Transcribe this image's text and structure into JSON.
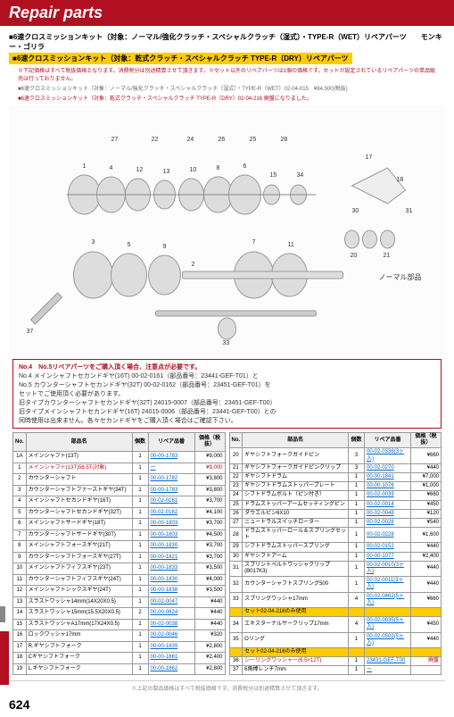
{
  "header": "Repair parts",
  "section_titles": [
    "■6速クロスミッションキット（対象：ノーマル/強化クラッチ・スペシャルクラッチ（湿式）・TYPE-R（WET）リペアパーツ　　モンキー・ゴリラ",
    "■6速クロスミッションキット（対象：乾式クラッチ・スペシャルクラッチ TYPE-R（DRY）リペアパーツ"
  ],
  "red_notice": "※下記価格はすべて税抜価格となります。消費税分は別途精算させて頂きます。※セット以外のリペアパーツは1個の価格です。セットが設定されているリペアパーツの単品販売は行っておりません。",
  "kit_lines": [
    "■6速クロスミッションキット（対象：ノーマル/強化クラッチ・スペシャルクラッチ（湿式）・TYPE-R（WET）02-04-015　¥84,500(税抜)",
    "■6速クロスミッションキット（対象：乾式クラッチ・スペシャルクラッチ TYPE-R（DRY）02-04-216 廃盤になりました。"
  ],
  "notice_box": {
    "header": "No.4　No.5リペアパーツをご購入頂く場合、注意点が必要です。",
    "lines": [
      "No.4 メインシャフトセカンドギヤ(16T) 00-02-0161（部品番号：23441-GEF-T01）と",
      "No.5 カウンターシャフトセカンドギヤ(32T) 00-02-0162（部品番号：23451-GEF-T01）を",
      "セットでご使用頂く必要があります。",
      "旧タイプカウンターシャフトセカンドギヤ(32T) 24015-0007（部品番号：23451-GEF-T00）",
      "旧タイプメインシャフトセカンドギヤ(16T) 24015-0006（部品番号：23441-GEF-T00）との",
      "同時使用は出来ません。各々セカンドギヤをご購入頂く場合はご確認下さい。"
    ]
  },
  "table_headers": [
    "No.",
    "部品名",
    "個数",
    "リペア品番",
    "価格（税抜）"
  ],
  "left_rows": [
    {
      "no": "1A",
      "nm": "メインシャフト(13T)",
      "qty": "1",
      "pn": "00-00-1783",
      "pr": "¥9,000"
    },
    {
      "no": "1",
      "nm": "メインシャフト(13T)58.5T(対象)",
      "qty": "1",
      "pn": "ー",
      "pr": "¥9,000",
      "red": true
    },
    {
      "no": "2",
      "nm": "カウンターシャフト",
      "qty": "1",
      "pn": "00-00-1782",
      "pr": "¥3,800"
    },
    {
      "no": "3",
      "nm": "カウンターシャフトファーストギヤ(34T)",
      "qty": "1",
      "pn": "00-00-1783",
      "pr": "¥3,800"
    },
    {
      "no": "4",
      "nm": "メインシャフトセカンドギヤ(16T)",
      "qty": "1",
      "pn": "00-02-0161",
      "pr": "¥3,700"
    },
    {
      "no": "5",
      "nm": "カウンターシャフトセカンドギヤ(32T)",
      "qty": "1",
      "pn": "00-02-0162",
      "pr": "¥4,100"
    },
    {
      "no": "6",
      "nm": "メインシャフトサードギヤ(18T)",
      "qty": "1",
      "pn": "00-00-1803",
      "pr": "¥3,700"
    },
    {
      "no": "7",
      "nm": "カウンターシャフトサードギヤ(30T)",
      "qty": "1",
      "pn": "00-00-1803",
      "pr": "¥4,500"
    },
    {
      "no": "8",
      "nm": "メインシャフトフォースギヤ(21T)",
      "qty": "1",
      "pn": "00-00-1830",
      "pr": "¥3,700"
    },
    {
      "no": "9",
      "nm": "カウンターシャフトフォースギヤ(27T)",
      "qty": "1",
      "pn": "00-00-1821",
      "pr": "¥3,700"
    },
    {
      "no": "10",
      "nm": "メインシャフトフィフスギヤ(23T)",
      "qty": "1",
      "pn": "00-00-1833",
      "pr": "¥3,500"
    },
    {
      "no": "11",
      "nm": "カウンターシャフトフィフスギヤ(24T)",
      "qty": "1",
      "pn": "00-00-1830",
      "pr": "¥4,000"
    },
    {
      "no": "12",
      "nm": "メインシャフトシックスギヤ(24T)",
      "qty": "1",
      "pn": "00-00-1838",
      "pr": "¥3,500"
    },
    {
      "no": "13",
      "nm": "スラストワッシャ14mm(14X20X0.5)",
      "qty": "1",
      "pn": "00-02-0047",
      "pr": "¥440"
    },
    {
      "no": "14",
      "nm": "スラストワッシャ15mm(15.5X20X0.5)",
      "qty": "2",
      "pn": "00-00-0624",
      "pr": "¥440"
    },
    {
      "no": "15",
      "nm": "スラストワッシャA17mm(17X24X0.5)",
      "qty": "1",
      "pn": "00-02-0038",
      "pr": "¥440"
    },
    {
      "no": "16",
      "nm": "ロックワッシャ17mm",
      "qty": "1",
      "pn": "00-02-0046",
      "pr": "¥320"
    },
    {
      "no": "17",
      "nm": "R.ギヤシフトフォーク",
      "qty": "1",
      "pn": "00-00-1839",
      "pr": "¥2,800"
    },
    {
      "no": "18",
      "nm": "Cギヤシフトフォーク",
      "qty": "1",
      "pn": "00-00-1861",
      "pr": "¥2,400"
    },
    {
      "no": "19",
      "nm": "L.ギヤシフトフォーク",
      "qty": "1",
      "pn": "00-00-1862",
      "pr": "¥2,800"
    }
  ],
  "right_rows": [
    {
      "no": "20",
      "nm": "ギヤシフトフォークガイドピン",
      "qty": "3",
      "pn": "00-02-0336(3ヶ入)",
      "pr": "¥660"
    },
    {
      "no": "21",
      "nm": "ギヤシフトフォークガイドピンクリップ",
      "qty": "3",
      "pn": "00-02-0270",
      "pr": "¥440"
    },
    {
      "no": "22",
      "nm": "ギヤシフトドラム",
      "qty": "1",
      "pn": "00-00-1841",
      "pr": "¥7,000"
    },
    {
      "no": "23",
      "nm": "ギヤシフトドラムストッパープレート",
      "qty": "1",
      "pn": "00-00-1076",
      "pr": "¥1,000"
    },
    {
      "no": "24",
      "nm": "シフトドラムボルト（ピン付き）",
      "qty": "1",
      "pn": "00-02-0039",
      "pr": "¥660"
    },
    {
      "no": "25",
      "nm": "ドラムストッパーアームセッティングピン",
      "qty": "1",
      "pn": "00-02-0014",
      "pr": "¥450"
    },
    {
      "no": "26",
      "nm": "ダウエルピン6X10",
      "qty": "1",
      "pn": "00-02-0048",
      "pr": "¥120"
    },
    {
      "no": "27",
      "nm": "ニュートラルスイッチローター",
      "qty": "1",
      "pn": "00-02-0028",
      "pr": "¥540"
    },
    {
      "no": "28",
      "nm": "ドラムストッパーロール＆スプリングセット",
      "qty": "1",
      "pn": "00-02-0228",
      "pr": "¥1,600"
    },
    {
      "no": "29",
      "nm": "シフトドラムストッパースプリング",
      "qty": "1",
      "pn": "00-02-0152",
      "pr": "¥440"
    },
    {
      "no": "30",
      "nm": "ギヤシフトアーム",
      "qty": "1",
      "pn": "00-00-1077",
      "pr": "¥2,400"
    },
    {
      "no": "31",
      "nm": "スプリントベルトワッシャクリップ(B017K3)",
      "qty": "1",
      "pn": "00-02-0010(3ヶ入)",
      "pr": "¥440"
    },
    {
      "no": "32",
      "nm": "カウンターシャフトスプリング500",
      "qty": "1",
      "pn": "00-02-0011(3ヶ入)",
      "pr": "¥440"
    },
    {
      "no": "33",
      "nm": "スプリングワッシャ17mm",
      "qty": "4",
      "pn": "00-02-0462(5ヶ入)",
      "pr": "¥660"
    },
    {
      "no": "",
      "nm": "セット02-04-216のみ使用",
      "qty": "",
      "pn": "",
      "pr": "",
      "orange": true
    },
    {
      "no": "34",
      "nm": "エキスターナルサークリップ17mm",
      "qty": "4",
      "pn": "00-02-0035(5ヶ入)",
      "pr": "¥450"
    },
    {
      "no": "35",
      "nm": "Oリング",
      "qty": "1",
      "pn": "00-02-0502(5ヶ入)",
      "pr": "¥440"
    },
    {
      "no": "",
      "nm": "セット02-04-216のみ使用",
      "qty": "",
      "pn": "",
      "pr": "",
      "orange": true
    },
    {
      "no": "36",
      "nm": "シーリングワッシャー(6.5×12T)",
      "qty": "1",
      "pn": "23431-GEF-T00",
      "pr": "廃盤",
      "red": true
    },
    {
      "no": "37",
      "nm": "6角棒レンチ7mm",
      "qty": "1",
      "pn": "ー",
      "pr": ""
    }
  ],
  "footer": "※上記の製品価格はすべて税抜価格です。消費税分は別途精算させて頂きます。",
  "page_number": "624",
  "normal_label": "ノーマル部品"
}
